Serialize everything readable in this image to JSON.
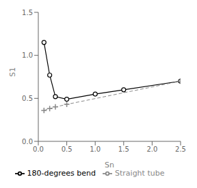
{
  "chart_data": {
    "type": "line",
    "xlabel": "Sn",
    "ylabel": "S1",
    "xlim": [
      0,
      2.5
    ],
    "ylim": [
      0,
      1.5
    ],
    "xticks": [
      {
        "value": 0,
        "label": "0.0"
      },
      {
        "value": 0.5,
        "label": "0.5"
      },
      {
        "value": 1,
        "label": "1.0"
      },
      {
        "value": 1.5,
        "label": "1.5"
      },
      {
        "value": 2,
        "label": "2.0"
      },
      {
        "value": 2.5,
        "label": "2.5"
      }
    ],
    "yticks": [
      {
        "value": 0,
        "label": "0.0"
      },
      {
        "value": 0.5,
        "label": "0.5"
      },
      {
        "value": 1,
        "label": "1.0"
      },
      {
        "value": 1.5,
        "label": "1.5"
      }
    ],
    "grid": false,
    "legend": "bottom",
    "series": [
      {
        "name": "180-degrees bend",
        "color": "#000000",
        "marker": "circle",
        "line_style": "solid",
        "x": [
          0.1,
          0.2,
          0.3,
          0.5,
          1.0,
          1.5,
          2.5
        ],
        "values": [
          1.15,
          0.77,
          0.52,
          0.49,
          0.55,
          0.6,
          0.7
        ]
      },
      {
        "name": "Straight tube",
        "color": "#888888",
        "marker": "plus",
        "line_style": "dashed",
        "x": [
          0.1,
          0.2,
          0.3,
          0.5,
          2.5
        ],
        "values": [
          0.36,
          0.38,
          0.4,
          0.43,
          0.7
        ]
      }
    ]
  }
}
